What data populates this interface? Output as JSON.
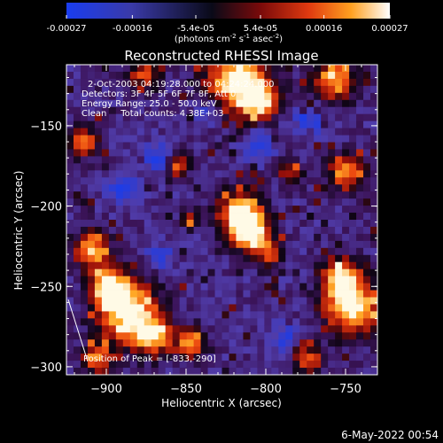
{
  "colorbar": {
    "tick_labels": [
      "-0.00027",
      "-0.00016",
      "-5.4e-05",
      "5.4e-05",
      "0.00016",
      "0.00027"
    ],
    "tick_values": [
      -0.00027,
      -0.00016,
      -5.4e-05,
      5.4e-05,
      0.00016,
      0.00027
    ],
    "range": [
      -0.00027,
      0.00027
    ],
    "unit_parts": [
      "(photons cm",
      "-2",
      " s",
      "-1",
      " asec",
      "-2",
      ")"
    ]
  },
  "chart_data": {
    "type": "heatmap",
    "title": "Reconstructed RHESSI Image",
    "xlabel": "Heliocentric X (arcsec)",
    "ylabel": "Heliocentric Y (arcsec)",
    "xlim": [
      -925,
      -730
    ],
    "ylim": [
      -305,
      -112
    ],
    "x_ticks": [
      -900,
      -850,
      -800,
      -750
    ],
    "x_tick_labels": [
      "−900",
      "−850",
      "−800",
      "−750"
    ],
    "y_ticks": [
      -300,
      -250,
      -200,
      -150
    ],
    "y_tick_labels": [
      "−300",
      "−250",
      "−200",
      "−150"
    ],
    "peak_x": -833,
    "peak_y": -290,
    "info_lines": [
      "2-Oct-2003 04:19:28.000 to 04:24:24.000",
      "Detectors: 3F 4F 5F 6F 7F 8F, Att 0",
      "Energy Range: 25.0 - 50.0 keV",
      "Clean     Total counts: 4.38E+03"
    ],
    "peak_label": "Position of Peak = [-833,-290]",
    "colors": {
      "background": "#000000",
      "axes": "#ffffff",
      "low": "#1f3bd6",
      "mid": "#1a0530",
      "high": "#fff8e0"
    }
  },
  "footer": {
    "timestamp": "6-May-2022 00:54"
  }
}
